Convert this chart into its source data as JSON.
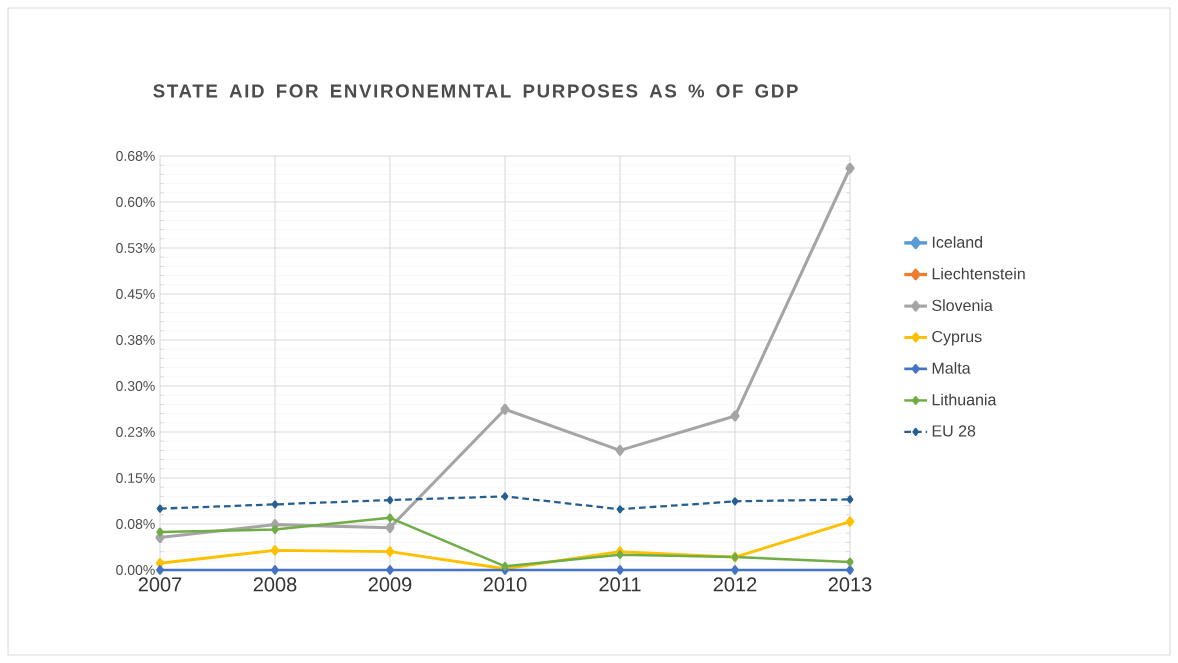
{
  "chart_data": {
    "type": "line",
    "title": "STATE AID FOR ENVIRONEMNTAL PURPOSES AS % OF GDP",
    "x": [
      2007,
      2008,
      2009,
      2010,
      2011,
      2012,
      2013
    ],
    "xlim": [
      2007,
      2013
    ],
    "xticks": [
      2007,
      2008,
      2009,
      2010,
      2011,
      2012,
      2013
    ],
    "ylim": [
      0,
      0.675
    ],
    "yticks": [
      {
        "value": 0,
        "label": "0.00%"
      },
      {
        "value": 0.075,
        "label": "0.08%"
      },
      {
        "value": 0.15,
        "label": "0.15%"
      },
      {
        "value": 0.225,
        "label": "0.23%"
      },
      {
        "value": 0.3,
        "label": "0.30%"
      },
      {
        "value": 0.375,
        "label": "0.38%"
      },
      {
        "value": 0.45,
        "label": "0.45%"
      },
      {
        "value": 0.525,
        "label": "0.53%"
      },
      {
        "value": 0.6,
        "label": "0.60%"
      },
      {
        "value": 0.675,
        "label": "0.68%"
      }
    ],
    "grid": true,
    "legend": "right",
    "marker": "diamond",
    "series": [
      {
        "name": "Iceland",
        "color": "#5b9bd5",
        "values": [
          null,
          null,
          null,
          null,
          null,
          null,
          null
        ]
      },
      {
        "name": "Liechtenstein",
        "color": "#ed7d31",
        "values": [
          null,
          null,
          null,
          null,
          null,
          null,
          null
        ]
      },
      {
        "name": "Slovenia",
        "color": "#a5a5a5",
        "values": [
          0.053,
          0.074,
          0.069,
          0.262,
          0.195,
          0.251,
          0.655
        ]
      },
      {
        "name": "Cyprus",
        "color": "#ffc000",
        "values": [
          0.011,
          0.032,
          0.03,
          0.002,
          0.03,
          0.021,
          0.079
        ]
      },
      {
        "name": "Malta",
        "color": "#4472c4",
        "values": [
          0,
          0,
          0,
          0,
          0,
          0,
          0
        ]
      },
      {
        "name": "Lithuania",
        "color": "#70ad47",
        "values": [
          0.062,
          0.066,
          0.085,
          0.006,
          0.025,
          0.021,
          0.013
        ]
      },
      {
        "name": "EU 28",
        "color": "#255e91",
        "line_style": "dashed",
        "values": [
          0.1,
          0.107,
          0.114,
          0.12,
          0.099,
          0.112,
          0.115
        ]
      }
    ]
  }
}
